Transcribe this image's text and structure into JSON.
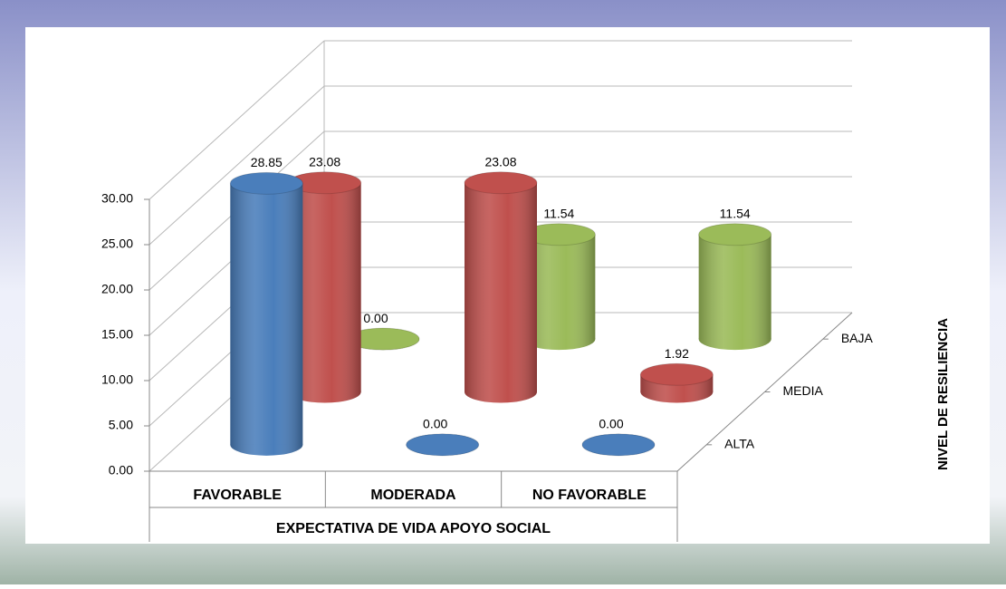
{
  "chart_data": {
    "type": "bar3d",
    "xlabel": "EXPECTATIVA DE VIDA APOYO SOCIAL",
    "zlabel": "NIVEL DE RESILIENCIA",
    "categories": [
      "FAVORABLE",
      "MODERADA",
      "NO FAVORABLE"
    ],
    "series": [
      {
        "name": "ALTA",
        "color": "#4a7ebb",
        "values": [
          28.85,
          0,
          0
        ],
        "value_labels": [
          "28.85",
          "0.00",
          "0.00"
        ]
      },
      {
        "name": "MEDIA",
        "color": "#c0504d",
        "values": [
          23.08,
          23.08,
          1.92
        ],
        "value_labels": [
          "23.08",
          "23.08",
          "1.92"
        ]
      },
      {
        "name": "BAJA",
        "color": "#9bbb59",
        "values": [
          0,
          11.54,
          11.54
        ],
        "value_labels": [
          "0.00",
          "11.54",
          "11.54"
        ]
      }
    ],
    "ylim": [
      0,
      30
    ],
    "yticks": [
      {
        "value": 0,
        "label": "0.00"
      },
      {
        "value": 5,
        "label": "5.00"
      },
      {
        "value": 10,
        "label": "10.00"
      },
      {
        "value": 15,
        "label": "15.00"
      },
      {
        "value": 20,
        "label": "20.00"
      },
      {
        "value": 25,
        "label": "25.00"
      },
      {
        "value": 30,
        "label": "30.00"
      }
    ],
    "grid": true
  }
}
